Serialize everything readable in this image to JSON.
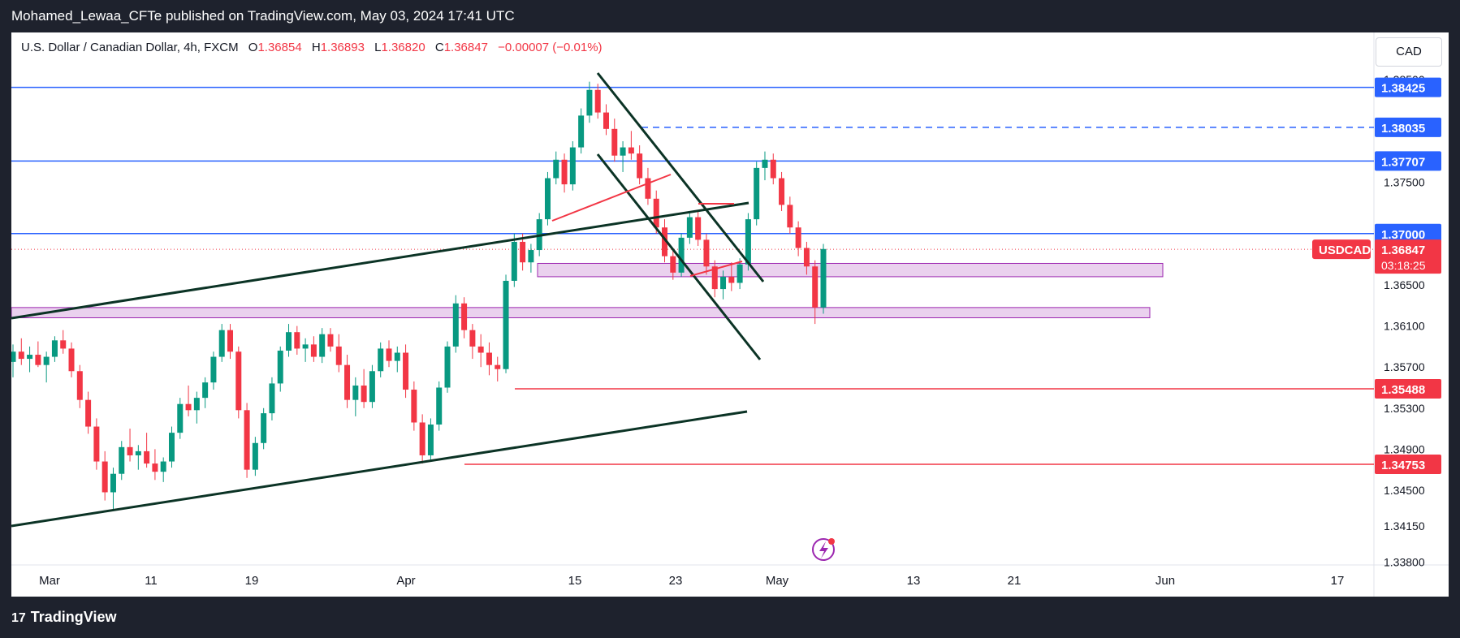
{
  "header": {
    "publisher_line": "Mohamed_Lewaa_CFTe published on TradingView.com, May 03, 2024 17:41 UTC"
  },
  "legend": {
    "symbol": "U.S. Dollar / Canadian Dollar, 4h, FXCM",
    "open_label": "O",
    "open": "1.36854",
    "high_label": "H",
    "high": "1.36893",
    "low_label": "L",
    "low": "1.36820",
    "close_label": "C",
    "close": "1.36847",
    "change": "−0.00007 (−0.01%)"
  },
  "currency_button": "CAD",
  "footer": {
    "brand": "TradingView",
    "logo_icon": "tradingview-logo-icon"
  },
  "colors": {
    "up": "#089981",
    "down": "#f23645",
    "blue_level": "#2962ff",
    "red_level": "#f23645",
    "trend": "#0b3325",
    "zone_fill": "#e1bee7",
    "zone_stroke": "#9c27b0"
  },
  "chart_data": {
    "type": "candlestick",
    "symbol": "USDCAD",
    "timeframe": "4h",
    "x_tick_labels": [
      "Mar",
      "11",
      "19",
      "Apr",
      "15",
      "23",
      "May",
      "13",
      "21",
      "Jun",
      "17"
    ],
    "y_tick_labels": [
      "1.38500",
      "1.37500",
      "1.36500",
      "1.36100",
      "1.35700",
      "1.35300",
      "1.34900",
      "1.34500",
      "1.34150",
      "1.33800"
    ],
    "ylim": [
      1.3378,
      1.3858
    ],
    "price_levels": [
      {
        "price": "1.38425",
        "color": "#2962ff",
        "style": "solid"
      },
      {
        "price": "1.38035",
        "color": "#2962ff",
        "style": "dashed"
      },
      {
        "price": "1.37707",
        "color": "#2962ff",
        "style": "solid"
      },
      {
        "price": "1.37000",
        "color": "#2962ff",
        "style": "solid"
      },
      {
        "price": "1.35488",
        "color": "#f23645",
        "style": "solid"
      },
      {
        "price": "1.34753",
        "color": "#f23645",
        "style": "solid"
      }
    ],
    "current_price": {
      "symbol_label": "USDCAD",
      "price": "1.36847",
      "countdown": "03:18:25"
    },
    "zones": [
      {
        "from_price": 1.3658,
        "to_price": 1.3671
      },
      {
        "from_price": 1.3618,
        "to_price": 1.3628
      }
    ],
    "candles": [
      [
        1.3575,
        1.3592,
        1.356,
        1.3585
      ],
      [
        1.3585,
        1.3598,
        1.3572,
        1.3578
      ],
      [
        1.3578,
        1.359,
        1.3565,
        1.3582
      ],
      [
        1.3582,
        1.3595,
        1.357,
        1.3572
      ],
      [
        1.3572,
        1.3585,
        1.3555,
        1.358
      ],
      [
        1.358,
        1.36,
        1.3575,
        1.3596
      ],
      [
        1.3596,
        1.3606,
        1.3583,
        1.3588
      ],
      [
        1.3588,
        1.3594,
        1.356,
        1.3566
      ],
      [
        1.3566,
        1.3572,
        1.353,
        1.3538
      ],
      [
        1.3538,
        1.3546,
        1.3505,
        1.3512
      ],
      [
        1.3512,
        1.352,
        1.347,
        1.3478
      ],
      [
        1.3478,
        1.3488,
        1.344,
        1.3448
      ],
      [
        1.3448,
        1.3472,
        1.343,
        1.3466
      ],
      [
        1.3466,
        1.3498,
        1.346,
        1.3492
      ],
      [
        1.3492,
        1.351,
        1.3478,
        1.3484
      ],
      [
        1.3484,
        1.3494,
        1.347,
        1.3488
      ],
      [
        1.3488,
        1.3506,
        1.3472,
        1.3476
      ],
      [
        1.3476,
        1.349,
        1.346,
        1.3468
      ],
      [
        1.3468,
        1.3482,
        1.3458,
        1.3478
      ],
      [
        1.3478,
        1.3512,
        1.3472,
        1.3506
      ],
      [
        1.3506,
        1.354,
        1.35,
        1.3534
      ],
      [
        1.3534,
        1.3552,
        1.3522,
        1.3528
      ],
      [
        1.3528,
        1.3546,
        1.3515,
        1.354
      ],
      [
        1.354,
        1.356,
        1.353,
        1.3555
      ],
      [
        1.3555,
        1.3585,
        1.3548,
        1.358
      ],
      [
        1.358,
        1.3612,
        1.3575,
        1.3606
      ],
      [
        1.3606,
        1.3612,
        1.3578,
        1.3585
      ],
      [
        1.3585,
        1.359,
        1.352,
        1.3528
      ],
      [
        1.3528,
        1.3535,
        1.3462,
        1.347
      ],
      [
        1.347,
        1.3502,
        1.3464,
        1.3496
      ],
      [
        1.3496,
        1.353,
        1.349,
        1.3525
      ],
      [
        1.3525,
        1.356,
        1.3518,
        1.3554
      ],
      [
        1.3554,
        1.359,
        1.3546,
        1.3586
      ],
      [
        1.3586,
        1.3612,
        1.358,
        1.3604
      ],
      [
        1.3604,
        1.361,
        1.3582,
        1.3588
      ],
      [
        1.3588,
        1.3598,
        1.3575,
        1.3592
      ],
      [
        1.3592,
        1.36,
        1.3575,
        1.358
      ],
      [
        1.358,
        1.3608,
        1.3574,
        1.3602
      ],
      [
        1.3602,
        1.3608,
        1.3585,
        1.359
      ],
      [
        1.359,
        1.3602,
        1.3565,
        1.3572
      ],
      [
        1.3572,
        1.3582,
        1.353,
        1.3538
      ],
      [
        1.3538,
        1.356,
        1.3522,
        1.3552
      ],
      [
        1.3552,
        1.3568,
        1.353,
        1.3536
      ],
      [
        1.3536,
        1.3572,
        1.353,
        1.3566
      ],
      [
        1.3566,
        1.3594,
        1.356,
        1.3588
      ],
      [
        1.3588,
        1.3596,
        1.357,
        1.3576
      ],
      [
        1.3576,
        1.359,
        1.3565,
        1.3584
      ],
      [
        1.3584,
        1.3592,
        1.354,
        1.3548
      ],
      [
        1.3548,
        1.3556,
        1.3508,
        1.3516
      ],
      [
        1.3516,
        1.3524,
        1.3476,
        1.3484
      ],
      [
        1.3484,
        1.352,
        1.3478,
        1.3514
      ],
      [
        1.3514,
        1.3556,
        1.3508,
        1.355
      ],
      [
        1.355,
        1.3595,
        1.3545,
        1.359
      ],
      [
        1.359,
        1.364,
        1.3584,
        1.3632
      ],
      [
        1.3632,
        1.3638,
        1.3598,
        1.3606
      ],
      [
        1.3606,
        1.3612,
        1.3578,
        1.359
      ],
      [
        1.359,
        1.3602,
        1.357,
        1.3584
      ],
      [
        1.3584,
        1.3594,
        1.3562,
        1.3572
      ],
      [
        1.3572,
        1.358,
        1.3556,
        1.3568
      ],
      [
        1.3568,
        1.366,
        1.3564,
        1.3654
      ],
      [
        1.3654,
        1.37,
        1.3648,
        1.3692
      ],
      [
        1.3692,
        1.37,
        1.3664,
        1.3672
      ],
      [
        1.3672,
        1.369,
        1.3662,
        1.3684
      ],
      [
        1.3684,
        1.372,
        1.3678,
        1.3714
      ],
      [
        1.3714,
        1.376,
        1.3708,
        1.3754
      ],
      [
        1.3754,
        1.378,
        1.3748,
        1.3772
      ],
      [
        1.3772,
        1.3778,
        1.374,
        1.3748
      ],
      [
        1.3748,
        1.379,
        1.3742,
        1.3784
      ],
      [
        1.3784,
        1.3822,
        1.3778,
        1.3815
      ],
      [
        1.3815,
        1.3848,
        1.3808,
        1.384
      ],
      [
        1.384,
        1.3846,
        1.3812,
        1.3818
      ],
      [
        1.3818,
        1.3826,
        1.3796,
        1.3802
      ],
      [
        1.3802,
        1.3812,
        1.377,
        1.3776
      ],
      [
        1.3776,
        1.379,
        1.376,
        1.3784
      ],
      [
        1.3784,
        1.38,
        1.3772,
        1.3778
      ],
      [
        1.3778,
        1.3786,
        1.3748,
        1.3754
      ],
      [
        1.3754,
        1.3764,
        1.3728,
        1.3734
      ],
      [
        1.3734,
        1.3742,
        1.37,
        1.3706
      ],
      [
        1.3706,
        1.3714,
        1.3672,
        1.3678
      ],
      [
        1.3678,
        1.3684,
        1.3655,
        1.3662
      ],
      [
        1.3662,
        1.37,
        1.3658,
        1.3696
      ],
      [
        1.3696,
        1.3722,
        1.369,
        1.3716
      ],
      [
        1.3716,
        1.3722,
        1.3688,
        1.3694
      ],
      [
        1.3694,
        1.37,
        1.366,
        1.3668
      ],
      [
        1.3668,
        1.3674,
        1.3638,
        1.3646
      ],
      [
        1.3646,
        1.3664,
        1.3636,
        1.3658
      ],
      [
        1.3658,
        1.3672,
        1.3644,
        1.3652
      ],
      [
        1.3652,
        1.3676,
        1.3646,
        1.367
      ],
      [
        1.367,
        1.372,
        1.3664,
        1.3714
      ],
      [
        1.3714,
        1.377,
        1.3708,
        1.3764
      ],
      [
        1.3764,
        1.378,
        1.3752,
        1.3772
      ],
      [
        1.3772,
        1.3778,
        1.3748,
        1.3754
      ],
      [
        1.3754,
        1.376,
        1.3722,
        1.3728
      ],
      [
        1.3728,
        1.3736,
        1.37,
        1.3706
      ],
      [
        1.3706,
        1.3712,
        1.3678,
        1.3686
      ],
      [
        1.3686,
        1.3692,
        1.366,
        1.3668
      ],
      [
        1.3668,
        1.3674,
        1.3612,
        1.3628
      ],
      [
        1.3628,
        1.369,
        1.3622,
        1.3685
      ]
    ]
  }
}
